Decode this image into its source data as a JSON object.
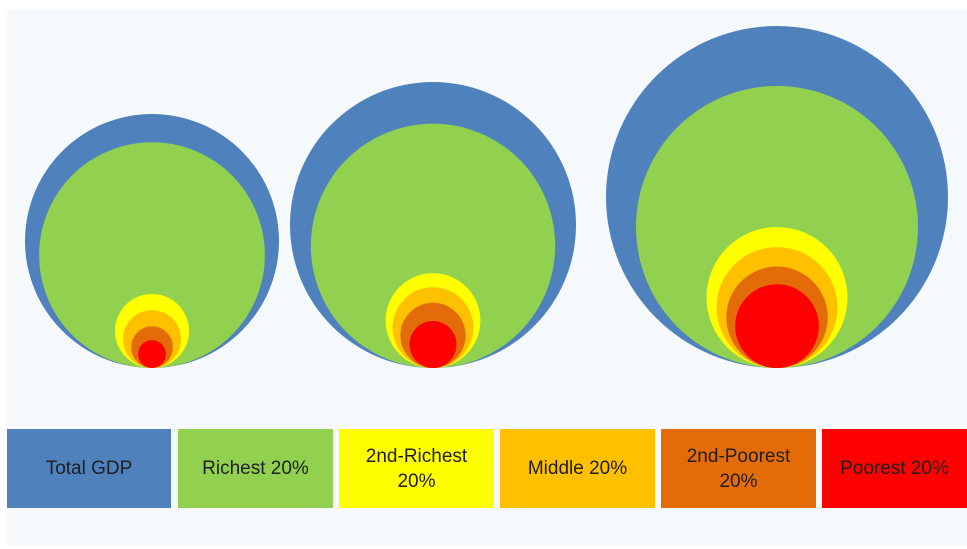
{
  "chart_data": {
    "type": "nested-bubble",
    "title": "",
    "series": [
      {
        "name": "Total GDP",
        "color": "#4f81bd"
      },
      {
        "name": "Richest 20%",
        "color": "#92d050"
      },
      {
        "name": "2nd-Richest 20%",
        "color": "#ffff00"
      },
      {
        "name": "Middle 20%",
        "color": "#ffc000"
      },
      {
        "name": "2nd-Poorest 20%",
        "color": "#e36c09"
      },
      {
        "name": "Poorest 20%",
        "color": "#ff0000"
      }
    ],
    "groups": [
      {
        "values": [
          100,
          79,
          8.5,
          5.2,
          2.7,
          1.2
        ]
      },
      {
        "values": [
          100,
          73,
          11,
          8.0,
          5.2,
          2.7
        ]
      },
      {
        "values": [
          100,
          68,
          17,
          12.5,
          8.8,
          6.0
        ]
      }
    ],
    "legend_position": "bottom"
  },
  "legend": {
    "items": [
      {
        "label": "Total GDP",
        "text_color": "#1f1f1f"
      },
      {
        "label": "Richest 20%",
        "text_color": "#1f1f1f"
      },
      {
        "label": "2nd-Richest\n20%",
        "text_color": "#1f1f1f"
      },
      {
        "label": "Middle 20%",
        "text_color": "#1f1f1f"
      },
      {
        "label": "2nd-Poorest\n20%",
        "text_color": "#1f1f1f"
      },
      {
        "label": "Poorest 20%",
        "text_color": "#1f1f1f"
      }
    ]
  }
}
